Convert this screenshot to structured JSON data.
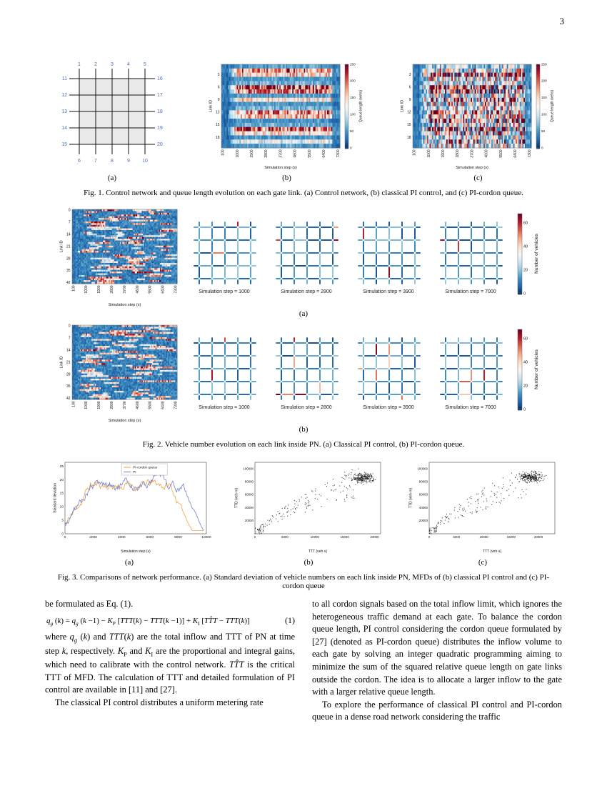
{
  "page_number": "3",
  "fig1": {
    "caption": "Fig. 1. Control network and queue length evolution on each gate link. (a) Control network, (b) classical PI control, and (c) PI-cordon queue.",
    "labels": {
      "a": "(a)",
      "b": "(b)",
      "c": "(c)"
    },
    "network": {
      "top": [
        "1",
        "2",
        "3",
        "4",
        "5"
      ],
      "bottom": [
        "6",
        "7",
        "8",
        "9",
        "10"
      ],
      "left": [
        "11",
        "12",
        "13",
        "14",
        "15"
      ],
      "right": [
        "16",
        "17",
        "18",
        "19",
        "20"
      ],
      "label_color": "#4a72b8"
    },
    "heatmap": {
      "ylabel": "Link ID",
      "xlabel": "Simulation step (s)",
      "yticks": [
        3,
        6,
        9,
        12,
        15,
        18
      ],
      "xticks": [
        100,
        1000,
        1900,
        2800,
        3700,
        4600,
        5500,
        6400,
        7300
      ],
      "colorbar_label": "Queue length (vehs)",
      "colorbar_ticks": [
        0,
        50,
        100,
        150,
        200,
        250
      ],
      "vmin": 0,
      "vmax": 250
    }
  },
  "fig2": {
    "caption": "Fig. 2. Vehicle number evolution on each link inside PN. (a) Classical PI control, (b) PI-cordon queue.",
    "labels": {
      "a": "(a)",
      "b": "(b)"
    },
    "heatmap": {
      "ylabel": "Link ID",
      "xlabel": "Simulation step (s)",
      "yticks": [
        0,
        7,
        14,
        21,
        28,
        35,
        42
      ],
      "xticks": [
        100,
        1000,
        1900,
        2800,
        3700,
        4600,
        5500,
        6400,
        7300
      ]
    },
    "snapshots": [
      "Simulation step = 1000",
      "Simulation step = 2800",
      "Simulation step = 3900",
      "Simulation step = 7000"
    ],
    "colorbar": {
      "label": "Number of vehicles",
      "ticks": [
        0,
        20,
        40,
        60
      ],
      "vmin": 0,
      "vmax": 68
    }
  },
  "fig3": {
    "caption": "Fig. 3. Comparisons of network performance. (a) Standard deviation of vehicle numbers on each link inside PN, MFDs of (b) classical PI control and (c) PI-cordon queue",
    "labels": {
      "a": "(a)",
      "b": "(b)",
      "c": "(c)"
    },
    "line_chart": {
      "ylabel": "Standard deviation",
      "xlabel": "Simulation step (s)",
      "yticks": [
        0,
        5,
        10,
        15,
        20,
        25
      ],
      "xticks": [
        0,
        2000,
        4000,
        6000,
        8000,
        10000
      ],
      "legend": [
        {
          "label": "PI-cordon queue",
          "color": "#f2a241"
        },
        {
          "label": "PI",
          "color": "#6f7fd0"
        }
      ]
    },
    "mfd_b": {
      "ylabel": "TTD (veh·m)",
      "xlabel": "TTT (veh·s)",
      "yticks": [
        20000,
        40000,
        60000,
        80000,
        100000
      ],
      "xticks": [
        0,
        5000,
        10000,
        15000,
        20000
      ]
    },
    "mfd_c": {
      "ylabel": "TTD (veh·m)",
      "xlabel": "TTT (veh·s)",
      "yticks": [
        20000,
        40000,
        60000,
        80000,
        100000
      ],
      "xticks": [
        0,
        5000,
        10000,
        15000,
        20000
      ]
    }
  },
  "body": {
    "left_p1": "be formulated as Eq. (1).",
    "equation": "*q~g~* (*k*) = *q~g~* (*k* −1) − *K*~P~ [*TTT*(*k*) − *TTT*(*k* −1)] + *K*~I~ [*TT̂T* − *TTT*(*k*)]",
    "equation_number": "(1)",
    "left_p2": "where *q~g~* (*k*) and *TTT*(*k*) are the total inflow and TTT of PN at time step *k*, respectively. *K*~P~ and *K*~I~ are the proportional and integral gains, which need to calibrate with the control network. *TT̂T* is the critical TTT of MFD. The calculation of TTT and detailed formulation of PI control are available in [11] and [27].",
    "left_p3": "The classical PI control distributes a uniform metering rate",
    "right_p1": "to all cordon signals based on the total inflow limit, which ignores the heterogeneous traffic demand at each gate. To balance the cordon queue length, PI control considering the cordon queue formulated by [27] (denoted as PI-cordon queue) distributes the inflow volume to each gate by solving an integer quadratic programming aiming to minimize the sum of the squared relative queue length on gate links outside the cordon. The idea is to allocate a larger inflow to the gate with a larger relative queue length.",
    "right_p2": "To explore the performance of classical PI control and PI-cordon queue in a dense road network considering the traffic"
  }
}
